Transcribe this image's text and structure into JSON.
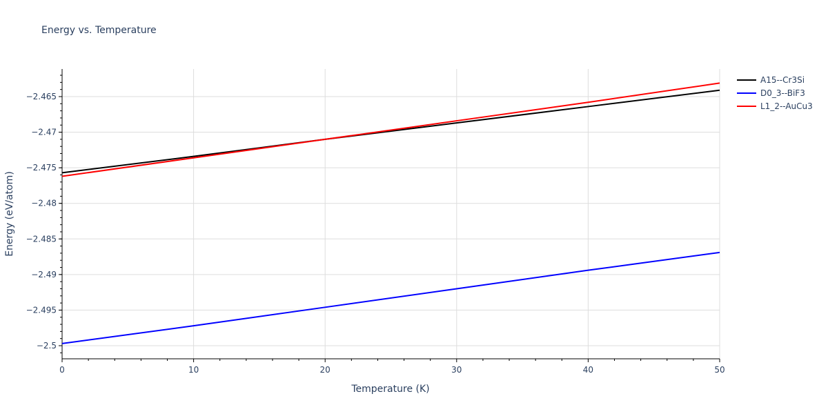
{
  "chart_data": {
    "type": "line",
    "title": "Energy vs. Temperature",
    "xlabel": "Temperature (K)",
    "ylabel": "Energy (eV/atom)",
    "xlim": [
      0,
      50
    ],
    "ylim": [
      -2.5019,
      -2.4608
    ],
    "x_ticks": [
      0,
      10,
      20,
      30,
      40,
      50
    ],
    "x_tick_labels": [
      "0",
      "10",
      "20",
      "30",
      "40",
      "50"
    ],
    "y_ticks": [
      -2.5,
      -2.495,
      -2.49,
      -2.485,
      -2.48,
      -2.475,
      -2.47,
      -2.465
    ],
    "y_tick_labels": [
      "−2.5",
      "−2.495",
      "−2.49",
      "−2.485",
      "−2.48",
      "−2.475",
      "−2.47",
      "−2.465"
    ],
    "grid": true,
    "legend_position": "right",
    "x": [
      0,
      10,
      20,
      30,
      40,
      50
    ],
    "series": [
      {
        "name": "A15--Cr3Si",
        "color": "#000000",
        "values": [
          -2.4757,
          -2.4734,
          -2.471,
          -2.4687,
          -2.4664,
          -2.4641
        ]
      },
      {
        "name": "D0_3--BiF3",
        "color": "#0000ff",
        "values": [
          -2.4997,
          -2.4972,
          -2.4946,
          -2.492,
          -2.4894,
          -2.4869
        ]
      },
      {
        "name": "L1_2--AuCu3",
        "color": "#ff0000",
        "values": [
          -2.4762,
          -2.4736,
          -2.471,
          -2.4684,
          -2.4658,
          -2.4631
        ]
      }
    ]
  }
}
